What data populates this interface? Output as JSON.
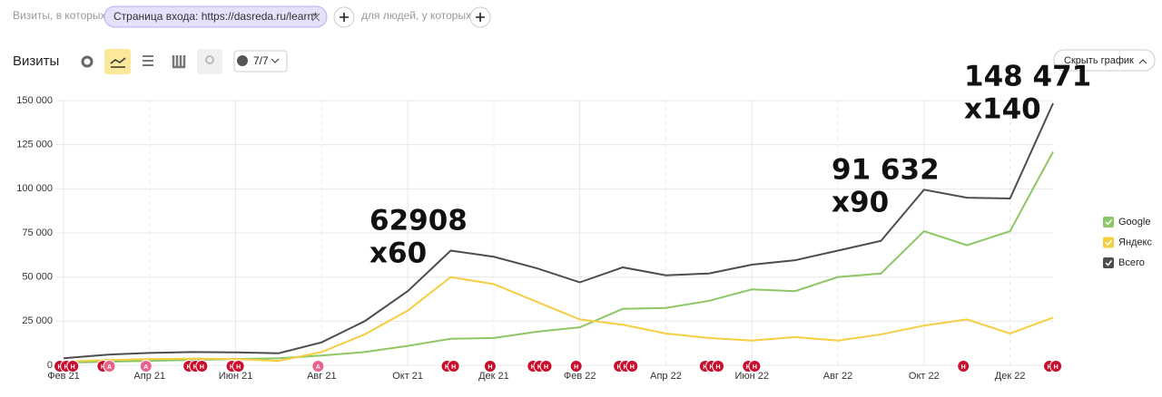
{
  "ui": {
    "filter_prefix": "Визиты, в которых",
    "filter_chip": "Страница входа: https://dasreda.ru/learn*",
    "filter_suffix": "для людей, у которых",
    "metric": "Визиты",
    "comments": "7/7",
    "hide_chart": "Скрыть график"
  },
  "chart_data": {
    "type": "line",
    "categories": [
      "Фев 21",
      null,
      "Апр 21",
      null,
      "Июн 21",
      null,
      "Авг 21",
      null,
      "Окт 21",
      null,
      "Дек 21",
      null,
      "Фев 22",
      null,
      "Апр 22",
      null,
      "Июн 22",
      null,
      "Авг 22",
      null,
      "Окт 22",
      null,
      "Дек 22",
      null
    ],
    "series": [
      {
        "name": "Google",
        "color": "#8cc665",
        "values": [
          1500,
          2000,
          2500,
          3000,
          3500,
          4000,
          5500,
          7500,
          11000,
          15000,
          15500,
          19000,
          21500,
          32000,
          32500,
          36500,
          43000,
          42000,
          50000,
          52000,
          76000,
          68000,
          76000,
          121000
        ]
      },
      {
        "name": "Яндекс",
        "color": "#f5ce42",
        "values": [
          2000,
          3000,
          3500,
          3800,
          3500,
          2500,
          7500,
          17500,
          31000,
          50000,
          46000,
          36000,
          26000,
          23000,
          18000,
          15500,
          14000,
          16000,
          14000,
          17500,
          22500,
          26000,
          18000,
          27000
        ]
      },
      {
        "name": "Всего",
        "color": "#4d4d4d",
        "values": [
          4000,
          6000,
          7000,
          7500,
          7300,
          6800,
          13000,
          25000,
          42000,
          65000,
          61500,
          55000,
          47000,
          55500,
          51000,
          52000,
          57000,
          59500,
          65000,
          70500,
          99500,
          95000,
          94500,
          148471
        ]
      }
    ],
    "ylim": [
      0,
      150000
    ],
    "yticks": [
      0,
      {
        "value": 25000,
        "label": "25 000"
      },
      {
        "value": 50000,
        "label": "50 000"
      },
      {
        "value": 75000,
        "label": "75 000"
      },
      {
        "value": 100000,
        "label": "100 000"
      },
      {
        "value": 125000,
        "label": "125 000"
      },
      {
        "value": 150000,
        "label": "150 000"
      }
    ],
    "grid": true,
    "legend": "right",
    "event_kinds": [
      "Н",
      "А"
    ],
    "annotations": [
      {
        "lines": [
          "62908",
          "x60"
        ]
      },
      {
        "lines": [
          "91 632",
          "x90"
        ]
      },
      {
        "lines": [
          "148 471",
          "x140"
        ]
      }
    ]
  }
}
